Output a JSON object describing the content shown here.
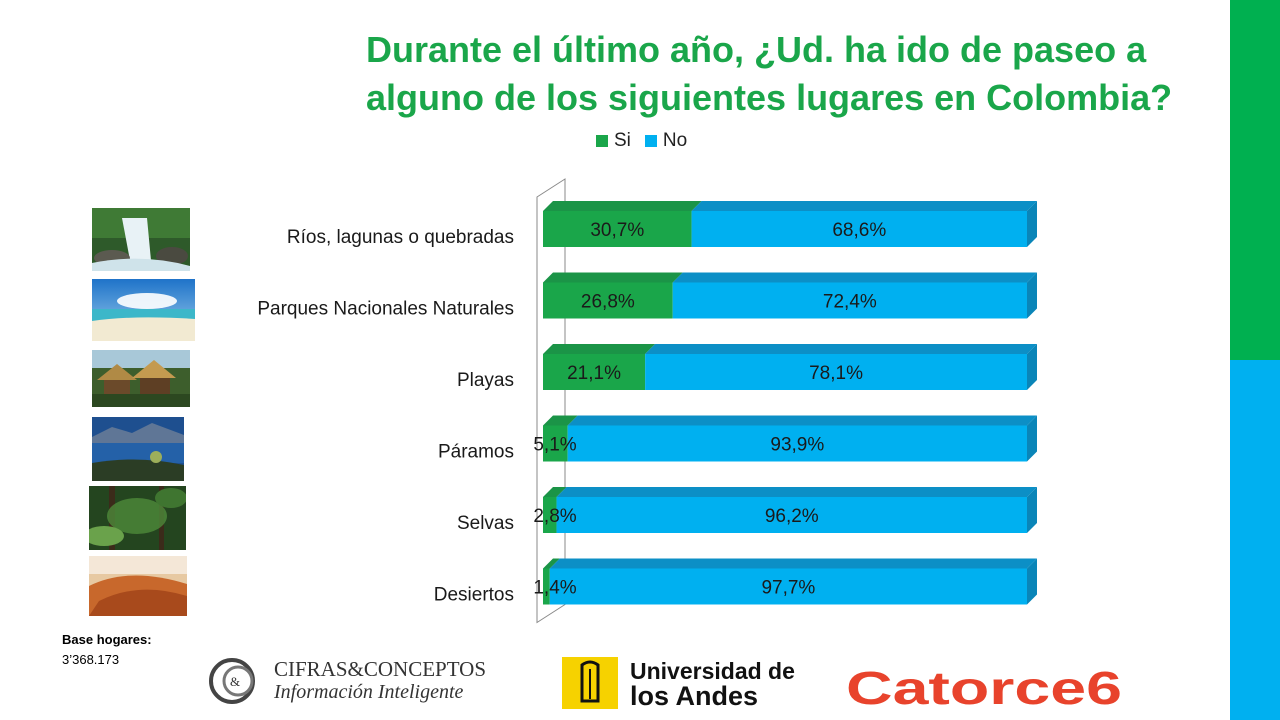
{
  "title": "Durante el último año, ¿Ud. ha ido de paseo a alguno de los siguientes lugares en Colombia?",
  "legend": [
    {
      "label": "Si",
      "color": "#1aa64a"
    },
    {
      "label": "No",
      "color": "#00b0f0"
    }
  ],
  "chart_data": {
    "type": "bar",
    "orientation": "horizontal",
    "stacked": true,
    "title": "Durante el último año, ¿Ud. ha ido de paseo a alguno de los siguientes lugares en Colombia?",
    "categories": [
      "Ríos, lagunas o quebradas",
      "Parques Nacionales Naturales",
      "Playas",
      "Páramos",
      "Selvas",
      "Desiertos"
    ],
    "series": [
      {
        "name": "Si",
        "values": [
          30.7,
          26.8,
          21.1,
          5.1,
          2.8,
          1.4
        ],
        "labels": [
          "30,7%",
          "26,8%",
          "21,1%",
          "5,1%",
          "2,8%",
          "1,4%"
        ],
        "color": "#1aa64a"
      },
      {
        "name": "No",
        "values": [
          68.6,
          72.4,
          78.1,
          93.9,
          96.2,
          97.7
        ],
        "labels": [
          "68,6%",
          "72,4%",
          "78,1%",
          "93,9%",
          "96,2%",
          "97,7%"
        ],
        "color": "#00b0f0"
      }
    ],
    "xlim": [
      0,
      100
    ],
    "legend_position": "top"
  },
  "base": {
    "label": "Base hogares:",
    "value": "3’368.173"
  },
  "logos": {
    "cifras_line1": "CIFRAS&CONCEPTOS",
    "cifras_line2": "Información Inteligente",
    "uniandes_line1": "Universidad de",
    "uniandes_line2": "los Andes",
    "catorce": "Catorce6"
  },
  "colors": {
    "green": "#00b050",
    "blue": "#00b0f0",
    "title": "#1aa64a"
  }
}
